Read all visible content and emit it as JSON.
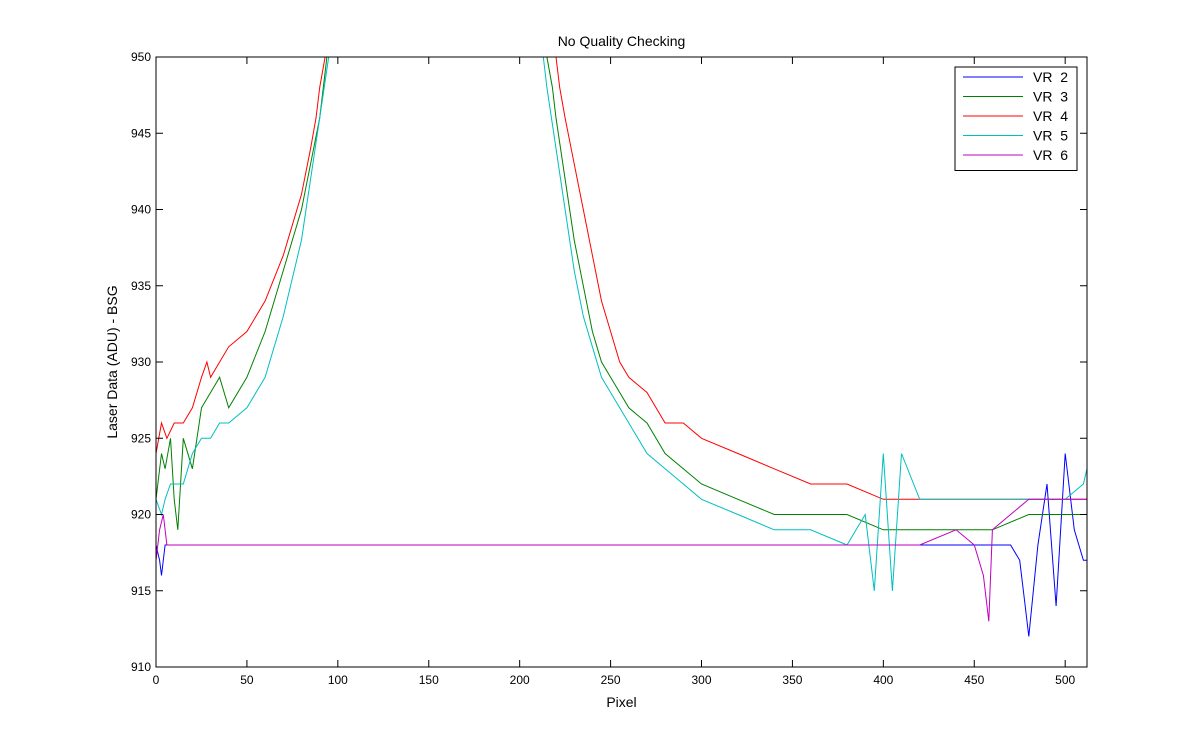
{
  "chart_data": {
    "type": "line",
    "title": "No Quality Checking",
    "xlabel": "Pixel",
    "ylabel": "Laser Data (ADU) - BSG",
    "xlim": [
      0,
      512
    ],
    "ylim": [
      910,
      950
    ],
    "xticks": [
      0,
      50,
      100,
      150,
      200,
      250,
      300,
      350,
      400,
      450,
      500
    ],
    "yticks": [
      910,
      915,
      920,
      925,
      930,
      935,
      940,
      945,
      950
    ],
    "grid": false,
    "legend_position": "top-right",
    "series": [
      {
        "name": "VR  2",
        "color": "#0000ff",
        "x": [
          0,
          2,
          3,
          5,
          10,
          20,
          30,
          40,
          50,
          60,
          80,
          100,
          120,
          150,
          180,
          200,
          230,
          260,
          300,
          320,
          340,
          360,
          380,
          400,
          420,
          440,
          460,
          470,
          475,
          478,
          480,
          485,
          490,
          495,
          500,
          505,
          510,
          512
        ],
        "y": [
          918,
          917,
          916,
          918,
          918,
          918,
          918,
          918,
          918,
          918,
          918,
          918,
          918,
          918,
          918,
          918,
          918,
          918,
          918,
          918,
          918,
          918,
          918,
          918,
          918,
          918,
          918,
          918,
          917,
          914,
          912,
          918,
          922,
          914,
          924,
          919,
          917,
          917
        ]
      },
      {
        "name": "VR  3",
        "color": "#008000",
        "x": [
          0,
          3,
          5,
          8,
          10,
          12,
          15,
          20,
          25,
          30,
          35,
          40,
          50,
          60,
          70,
          80,
          85,
          90,
          93,
          94,
          215,
          218,
          220,
          225,
          230,
          235,
          240,
          245,
          250,
          255,
          260,
          270,
          280,
          290,
          300,
          320,
          340,
          360,
          380,
          400,
          420,
          440,
          460,
          480,
          500,
          510,
          512
        ],
        "y": [
          921,
          924,
          923,
          925,
          921,
          919,
          925,
          923,
          927,
          928,
          929,
          927,
          929,
          932,
          936,
          940,
          943,
          946,
          949,
          950,
          950,
          948,
          946,
          942,
          938,
          935,
          932,
          930,
          929,
          928,
          927,
          926,
          924,
          923,
          922,
          921,
          920,
          920,
          920,
          919,
          919,
          919,
          919,
          920,
          920,
          920,
          920
        ]
      },
      {
        "name": "VR  4",
        "color": "#ff0000",
        "x": [
          0,
          3,
          6,
          10,
          15,
          20,
          25,
          28,
          30,
          35,
          40,
          50,
          60,
          70,
          75,
          80,
          85,
          88,
          90,
          93,
          220,
          222,
          225,
          230,
          235,
          240,
          245,
          250,
          255,
          260,
          270,
          280,
          290,
          300,
          320,
          340,
          360,
          380,
          400,
          420,
          440,
          460,
          480,
          500,
          510,
          512
        ],
        "y": [
          924,
          926,
          925,
          926,
          926,
          927,
          929,
          930,
          929,
          930,
          931,
          932,
          934,
          937,
          939,
          941,
          944,
          946,
          948,
          950,
          950,
          948,
          946,
          943,
          940,
          937,
          934,
          932,
          930,
          929,
          928,
          926,
          926,
          925,
          924,
          923,
          922,
          922,
          921,
          921,
          921,
          921,
          921,
          921,
          921,
          921
        ]
      },
      {
        "name": "VR  5",
        "color": "#00bfbf",
        "x": [
          0,
          3,
          5,
          8,
          10,
          15,
          20,
          25,
          30,
          35,
          40,
          50,
          60,
          70,
          80,
          85,
          90,
          95,
          213,
          215,
          220,
          225,
          230,
          235,
          240,
          245,
          250,
          255,
          260,
          270,
          280,
          290,
          300,
          320,
          340,
          360,
          380,
          390,
          395,
          400,
          405,
          410,
          420,
          440,
          460,
          480,
          500,
          510,
          512
        ],
        "y": [
          921,
          920,
          921,
          922,
          922,
          922,
          924,
          925,
          925,
          926,
          926,
          927,
          929,
          933,
          938,
          942,
          946,
          950,
          950,
          948,
          944,
          940,
          936,
          933,
          931,
          929,
          928,
          927,
          926,
          924,
          923,
          922,
          921,
          920,
          919,
          919,
          918,
          920,
          915,
          924,
          915,
          924,
          921,
          921,
          921,
          921,
          921,
          922,
          923
        ]
      },
      {
        "name": "VR  6",
        "color": "#bf00bf",
        "x": [
          0,
          2,
          4,
          6,
          10,
          20,
          30,
          40,
          50,
          60,
          80,
          100,
          120,
          150,
          180,
          200,
          230,
          260,
          300,
          320,
          340,
          360,
          380,
          400,
          420,
          440,
          450,
          455,
          458,
          460,
          470,
          480,
          490,
          500,
          510,
          512
        ],
        "y": [
          917,
          919,
          920,
          918,
          918,
          918,
          918,
          918,
          918,
          918,
          918,
          918,
          918,
          918,
          918,
          918,
          918,
          918,
          918,
          918,
          918,
          918,
          918,
          918,
          918,
          919,
          918,
          916,
          913,
          919,
          920,
          921,
          921,
          921,
          921,
          921
        ]
      }
    ]
  }
}
